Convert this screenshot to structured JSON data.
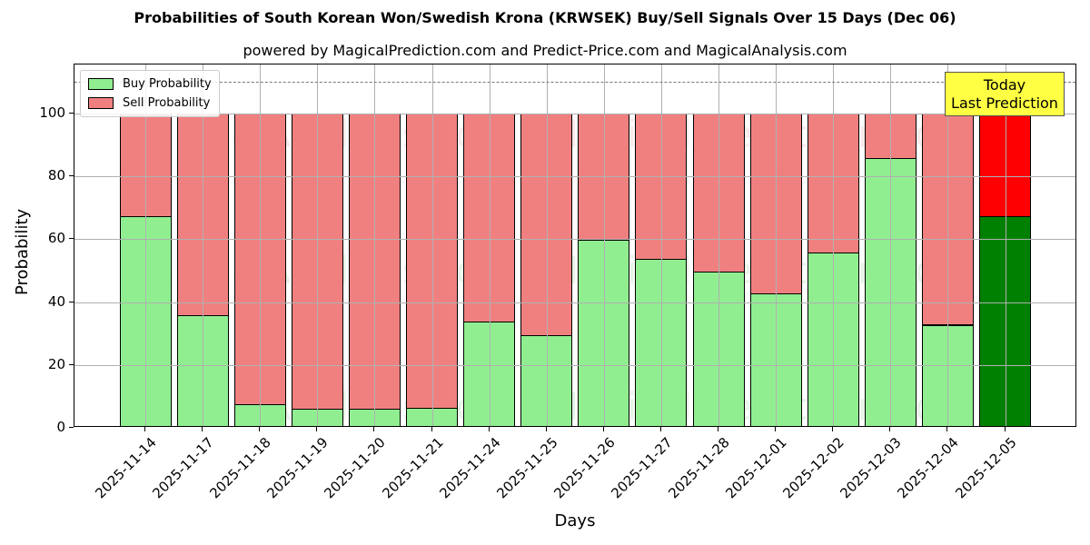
{
  "header": {
    "title": "Probabilities of South Korean Won/Swedish Krona (KRWSEK) Buy/Sell Signals Over 15 Days (Dec 06)",
    "subtitle": "powered by MagicalPrediction.com and Predict-Price.com and MagicalAnalysis.com"
  },
  "legend": {
    "buy_label": "Buy Probability",
    "sell_label": "Sell Probability"
  },
  "annotation": {
    "line1": "Today",
    "line2": "Last Prediction"
  },
  "watermarks": [
    "MagicalAnalysis.com",
    "MagicalPrediction.com"
  ],
  "colors": {
    "buy": "#90ee90",
    "sell": "#f08080",
    "buy_today": "#008000",
    "sell_today": "#ff0000",
    "annotation_bg": "#ffff44"
  },
  "chart_data": {
    "type": "bar",
    "stacked": true,
    "title": "Probabilities of South Korean Won/Swedish Krona (KRWSEK) Buy/Sell Signals Over 15 Days (Dec 06)",
    "subtitle": "powered by MagicalPrediction.com and Predict-Price.com and MagicalAnalysis.com",
    "xlabel": "Days",
    "ylabel": "Probability",
    "ylim": [
      0,
      115.6
    ],
    "yticks": [
      0,
      20,
      40,
      60,
      80,
      100
    ],
    "grid": true,
    "legend_position": "upper left",
    "reference_line": {
      "y": 110,
      "style": "dashed"
    },
    "categories": [
      "2025-11-14",
      "2025-11-17",
      "2025-11-18",
      "2025-11-19",
      "2025-11-20",
      "2025-11-21",
      "2025-11-24",
      "2025-11-25",
      "2025-11-26",
      "2025-11-27",
      "2025-11-28",
      "2025-12-01",
      "2025-12-02",
      "2025-12-03",
      "2025-12-04",
      "2025-12-05"
    ],
    "series": [
      {
        "name": "Buy Probability",
        "values": [
          67.3,
          35.8,
          7.5,
          6.1,
          6.1,
          6.4,
          33.9,
          29.4,
          59.9,
          53.7,
          49.6,
          42.9,
          55.9,
          85.7,
          32.8,
          67.2
        ]
      },
      {
        "name": "Sell Probability",
        "values": [
          32.7,
          64.2,
          92.5,
          93.9,
          93.9,
          93.6,
          66.1,
          70.6,
          40.1,
          46.3,
          50.4,
          57.1,
          44.1,
          14.3,
          67.2,
          32.8
        ]
      }
    ],
    "annotations": [
      {
        "text": "Today\nLast Prediction",
        "category": "2025-12-05"
      }
    ]
  }
}
